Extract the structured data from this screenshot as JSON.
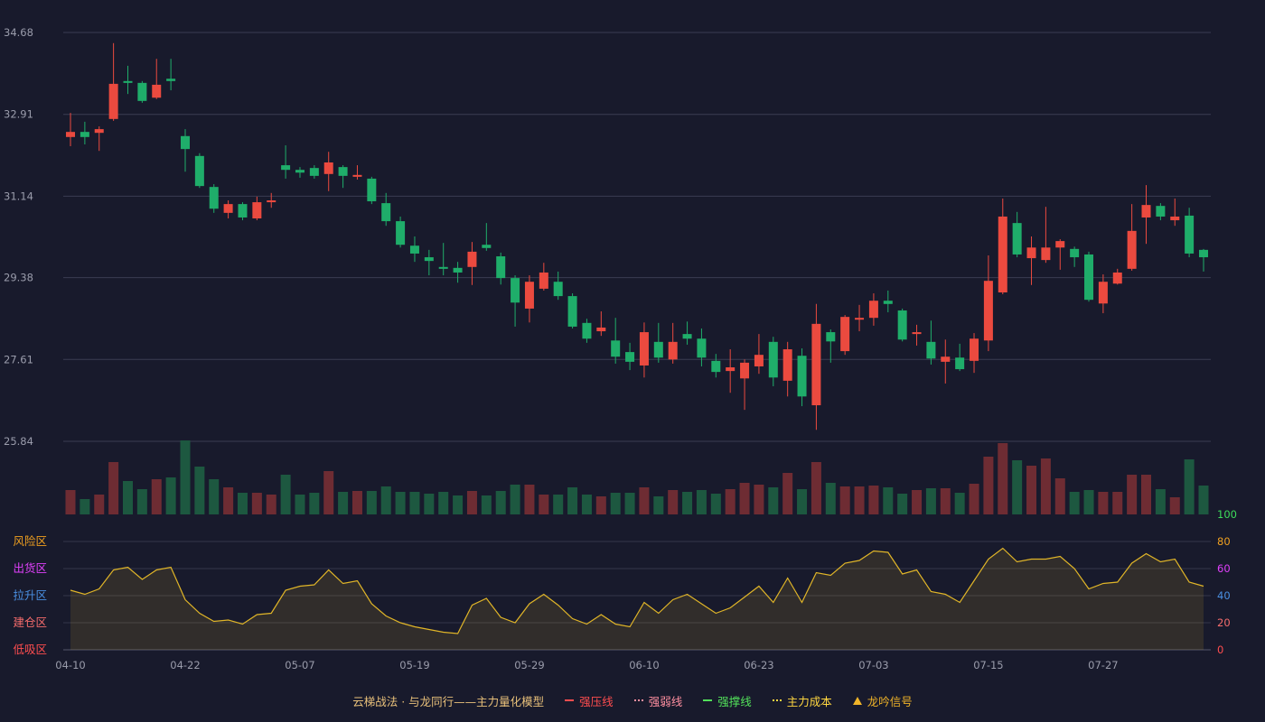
{
  "chart_data": {
    "type": "candlestick",
    "categories": [
      "04-10",
      null,
      null,
      null,
      null,
      null,
      null,
      null,
      "04-22",
      null,
      null,
      null,
      null,
      null,
      null,
      null,
      "05-07",
      null,
      null,
      null,
      null,
      null,
      null,
      null,
      "05-19",
      null,
      null,
      null,
      null,
      null,
      null,
      null,
      "05-29",
      null,
      null,
      null,
      null,
      null,
      null,
      null,
      "06-10",
      null,
      null,
      null,
      null,
      null,
      null,
      null,
      "06-23",
      null,
      null,
      null,
      null,
      null,
      null,
      null,
      "07-03",
      null,
      null,
      null,
      null,
      null,
      null,
      null,
      "07-15",
      null,
      null,
      null,
      null,
      null,
      null,
      null,
      "07-27",
      null,
      null,
      null,
      null,
      null,
      null,
      null
    ],
    "open": [
      32.42,
      32.53,
      32.51,
      32.81,
      33.63,
      33.59,
      33.27,
      33.68,
      32.44,
      32.01,
      31.34,
      30.78,
      30.97,
      30.66,
      31.01,
      31.81,
      31.71,
      31.75,
      31.62,
      31.77,
      31.56,
      31.52,
      30.99,
      30.6,
      30.07,
      29.82,
      29.61,
      29.59,
      29.61,
      30.09,
      29.84,
      29.37,
      28.71,
      29.14,
      29.29,
      28.98,
      28.4,
      28.22,
      28.02,
      27.77,
      27.48,
      27.99,
      27.61,
      28.16,
      28.06,
      27.58,
      27.36,
      27.2,
      27.46,
      27.99,
      27.15,
      27.69,
      26.62,
      28.2,
      27.79,
      28.47,
      28.51,
      28.88,
      28.67,
      28.16,
      27.99,
      27.56,
      27.65,
      27.58,
      28.02,
      29.06,
      30.56,
      29.8,
      29.76,
      30.03,
      30.0,
      29.88,
      28.82,
      29.25,
      29.57,
      30.68,
      30.93,
      30.62,
      30.72,
      29.98
    ],
    "high": [
      32.94,
      32.75,
      32.65,
      34.45,
      33.96,
      33.63,
      34.11,
      34.11,
      32.59,
      32.07,
      31.4,
      31.05,
      31.01,
      31.13,
      31.21,
      32.24,
      31.77,
      31.81,
      32.1,
      31.81,
      31.81,
      31.56,
      31.21,
      30.7,
      30.27,
      29.98,
      30.13,
      29.72,
      30.15,
      30.56,
      29.92,
      29.43,
      29.43,
      29.7,
      29.51,
      29.04,
      28.49,
      28.65,
      28.51,
      27.97,
      28.41,
      28.4,
      28.4,
      28.43,
      28.28,
      27.73,
      27.83,
      27.61,
      28.16,
      28.1,
      27.99,
      27.85,
      28.81,
      28.26,
      28.57,
      28.79,
      29.04,
      29.1,
      28.71,
      28.36,
      28.45,
      28.04,
      27.95,
      28.18,
      29.86,
      31.09,
      30.8,
      30.27,
      30.91,
      30.21,
      30.05,
      29.94,
      29.45,
      29.57,
      30.97,
      31.38,
      30.99,
      31.09,
      30.89,
      30.0
    ],
    "low": [
      32.22,
      32.26,
      32.12,
      32.77,
      33.35,
      33.16,
      33.24,
      33.43,
      31.67,
      31.32,
      30.78,
      30.66,
      30.62,
      30.62,
      30.89,
      31.52,
      31.54,
      31.52,
      31.25,
      31.32,
      31.5,
      30.97,
      30.5,
      30.03,
      29.72,
      29.43,
      29.43,
      29.27,
      29.22,
      29.96,
      29.23,
      28.32,
      28.41,
      29.1,
      28.9,
      28.28,
      27.97,
      28.12,
      27.52,
      27.38,
      27.22,
      27.54,
      27.52,
      27.93,
      27.46,
      27.22,
      26.89,
      26.52,
      27.3,
      27.03,
      26.81,
      26.6,
      26.09,
      27.54,
      27.71,
      28.22,
      28.34,
      28.63,
      28.0,
      27.91,
      27.5,
      27.09,
      27.36,
      27.32,
      27.79,
      29.02,
      29.82,
      29.22,
      29.7,
      29.55,
      29.61,
      28.86,
      28.61,
      29.23,
      29.53,
      30.11,
      30.62,
      30.5,
      29.82,
      29.51
    ],
    "close": [
      32.53,
      32.42,
      32.59,
      33.57,
      33.59,
      33.2,
      33.55,
      33.63,
      32.16,
      31.36,
      30.87,
      30.97,
      30.68,
      31.01,
      31.05,
      31.71,
      31.65,
      31.58,
      31.87,
      31.58,
      31.6,
      31.03,
      30.6,
      30.09,
      29.9,
      29.74,
      29.57,
      29.49,
      29.94,
      30.02,
      29.37,
      28.84,
      29.29,
      29.49,
      28.98,
      28.32,
      28.06,
      28.3,
      27.67,
      27.56,
      28.2,
      27.65,
      27.99,
      28.06,
      27.65,
      27.34,
      27.44,
      27.54,
      27.71,
      27.22,
      27.83,
      26.81,
      28.38,
      28.0,
      28.53,
      28.51,
      28.88,
      28.81,
      28.04,
      28.2,
      27.63,
      27.67,
      27.4,
      28.06,
      29.31,
      30.7,
      29.88,
      30.03,
      30.03,
      30.17,
      29.82,
      28.9,
      29.29,
      29.49,
      30.39,
      30.95,
      30.7,
      30.7,
      29.9,
      29.82
    ],
    "volume": [
      27,
      17,
      22,
      58,
      37,
      28,
      39,
      41,
      82,
      53,
      39,
      30,
      24,
      24,
      22,
      44,
      22,
      24,
      48,
      25,
      26,
      26,
      31,
      25,
      25,
      23,
      25,
      21,
      26,
      21,
      26,
      33,
      33,
      22,
      22,
      30,
      22,
      20,
      24,
      24,
      30,
      20,
      27,
      25,
      27,
      23,
      28,
      35,
      33,
      30,
      46,
      28,
      58,
      35,
      31,
      31,
      32,
      30,
      23,
      27,
      29,
      29,
      24,
      34,
      64,
      79,
      60,
      54,
      62,
      40,
      25,
      27,
      25,
      25,
      44,
      44,
      28,
      19,
      61,
      32
    ],
    "ylim": [
      25.84,
      34.68
    ],
    "yticks": [
      25.84,
      27.61,
      29.38,
      31.14,
      32.91,
      34.68
    ],
    "grid": true,
    "up_color": "#eb4a3f",
    "down_color": "#1fad6a",
    "up_volume_color": "#6e2c33",
    "down_volume_color": "#1d5840",
    "indicator": {
      "type": "area",
      "color": "#e0b528",
      "values": [
        44,
        41,
        45,
        59,
        61,
        52,
        59,
        61,
        37,
        27,
        21,
        22,
        19,
        26,
        27,
        44,
        47,
        48,
        59,
        49,
        51,
        34,
        25,
        20,
        17,
        15,
        13,
        12,
        33,
        38,
        24,
        20,
        34,
        41,
        33,
        23,
        19,
        26,
        19,
        17,
        35,
        27,
        37,
        41,
        34,
        27,
        31,
        39,
        47,
        35,
        53,
        35,
        57,
        55,
        64,
        66,
        73,
        72,
        56,
        59,
        43,
        41,
        35,
        51,
        67,
        75,
        65,
        67,
        67,
        69,
        60,
        45,
        49,
        50,
        64,
        71,
        65,
        67,
        50,
        47
      ],
      "ylim": [
        0,
        100
      ],
      "yticks": [
        0,
        20,
        40,
        60,
        80,
        100
      ],
      "ytick_colors": [
        "#ff4d4f",
        "#f56c6c",
        "#4a90e2",
        "#e040fb",
        "#f0a020",
        "#3ddc5a"
      ],
      "zones": [
        {
          "label": "风险区",
          "value": 80,
          "color": "#f0a020"
        },
        {
          "label": "出货区",
          "value": 60,
          "color": "#e040fb"
        },
        {
          "label": "拉升区",
          "value": 40,
          "color": "#4a90e2"
        },
        {
          "label": "建仓区",
          "value": 20,
          "color": "#f56c6c"
        },
        {
          "label": "低吸区",
          "value": 0,
          "color": "#ff4d4f"
        }
      ]
    },
    "legend": {
      "title": "云梯战法 · 与龙同行——主力量化模型",
      "title_color": "#e8c07a",
      "items": [
        {
          "name": "强压线",
          "color": "#ff4d4f",
          "style": "solid"
        },
        {
          "name": "强弱线",
          "color": "#ff8fa0",
          "style": "dashed"
        },
        {
          "name": "强撑线",
          "color": "#52e05a",
          "style": "solid"
        },
        {
          "name": "主力成本",
          "color": "#ffd740",
          "style": "dashed"
        },
        {
          "name": "龙吟信号",
          "color": "#f0b429",
          "style": "triangle"
        }
      ]
    }
  }
}
